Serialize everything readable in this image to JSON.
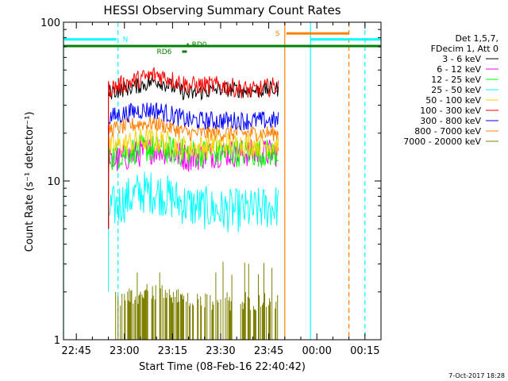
{
  "chart_data": {
    "type": "line",
    "title": "HESSI Observing Summary Count Rates",
    "xlabel": "Start Time (08-Feb-16 22:40:42)",
    "ylabel": "Count Rate (s⁻¹ detector⁻¹)",
    "yscale": "log",
    "ylim": [
      1,
      100
    ],
    "xlim": [
      "22:41",
      "00:20"
    ],
    "x_ticks": [
      "22:45",
      "23:00",
      "23:15",
      "23:30",
      "23:45",
      "00:00",
      "00:15"
    ],
    "y_ticks": [
      "1",
      "10",
      "100"
    ],
    "legend_header": [
      "Det 1,5,7,",
      "FDecim 1, Att 0"
    ],
    "legend_position": "right",
    "grid": false,
    "series": [
      {
        "name": "3 - 6 keV",
        "color": "#000000",
        "x": [
          "22:55",
          "23:05",
          "23:10",
          "23:20",
          "23:30",
          "23:40",
          "23:48"
        ],
        "values": [
          36,
          40,
          43,
          35,
          38,
          37,
          38
        ]
      },
      {
        "name": "6 - 12 keV",
        "color": "#ff00ff",
        "x": [
          "22:55",
          "23:05",
          "23:10",
          "23:20",
          "23:30",
          "23:40",
          "23:48"
        ],
        "values": [
          13,
          15,
          16,
          14,
          15,
          15,
          15
        ]
      },
      {
        "name": "12 - 25 keV",
        "color": "#00ff00",
        "x": [
          "22:55",
          "23:05",
          "23:10",
          "23:20",
          "23:30",
          "23:40",
          "23:48"
        ],
        "values": [
          14,
          16,
          16,
          15,
          15,
          15,
          15
        ]
      },
      {
        "name": "25 - 50 keV",
        "color": "#00ffff",
        "x": [
          "22:55",
          "23:05",
          "23:10",
          "23:20",
          "23:30",
          "23:40",
          "23:48"
        ],
        "values": [
          6.5,
          8.5,
          8.5,
          7,
          6.5,
          6.5,
          7
        ]
      },
      {
        "name": "50 - 100 keV",
        "color": "#ffd000",
        "x": [
          "22:55",
          "23:05",
          "23:10",
          "23:20",
          "23:30",
          "23:40",
          "23:48"
        ],
        "values": [
          16,
          18,
          18,
          16,
          17,
          17,
          17
        ]
      },
      {
        "name": "100 - 300 keV",
        "color": "#ff0000",
        "x": [
          "22:55",
          "23:05",
          "23:10",
          "23:20",
          "23:30",
          "23:40",
          "23:48"
        ],
        "values": [
          38,
          44,
          47,
          40,
          40,
          37,
          40
        ]
      },
      {
        "name": "300 - 800 keV",
        "color": "#0000ff",
        "x": [
          "22:55",
          "23:05",
          "23:10",
          "23:20",
          "23:30",
          "23:40",
          "23:48"
        ],
        "values": [
          25,
          28,
          28,
          24,
          24,
          24,
          24
        ]
      },
      {
        "name": "800 - 7000 keV",
        "color": "#ff8000",
        "x": [
          "22:55",
          "23:05",
          "23:10",
          "23:20",
          "23:30",
          "23:40",
          "23:48"
        ],
        "values": [
          21,
          23,
          23,
          20,
          20,
          20,
          20
        ]
      },
      {
        "name": "7000 - 20000 keV",
        "color": "#808000",
        "x": [
          "22:57",
          "23:05",
          "23:10",
          "23:20",
          "23:30",
          "23:40",
          "23:48"
        ],
        "values": [
          1.5,
          1.7,
          1.8,
          1.5,
          1.5,
          1.5,
          1.5
        ]
      }
    ],
    "annotations": [
      {
        "label": "N",
        "color": "#00ffff",
        "x_start": "22:41",
        "x_end": "22:58",
        "y": 78
      },
      {
        "label": "S",
        "color": "#ff8000",
        "x_start": "23:50",
        "x_end": "00:10",
        "y": 85
      },
      {
        "label": "RD0",
        "color": "#008000",
        "x": "23:20",
        "y": 70
      },
      {
        "label": "RD6",
        "color": "#008000",
        "x": "23:17",
        "y": 63
      }
    ],
    "vertical_lines": [
      {
        "x": "22:41",
        "color": "#00ffff",
        "style": "solid"
      },
      {
        "x": "22:58",
        "color": "#00ffff",
        "style": "dashed"
      },
      {
        "x": "23:50",
        "color": "#ff8000",
        "style": "solid"
      },
      {
        "x": "23:58",
        "color": "#00ffff",
        "style": "solid"
      },
      {
        "x": "00:10",
        "color": "#ff8000",
        "style": "dashed"
      },
      {
        "x": "00:15",
        "color": "#00ffff",
        "style": "dashed"
      }
    ],
    "footer_date": "7-Oct-2017 18:28"
  }
}
